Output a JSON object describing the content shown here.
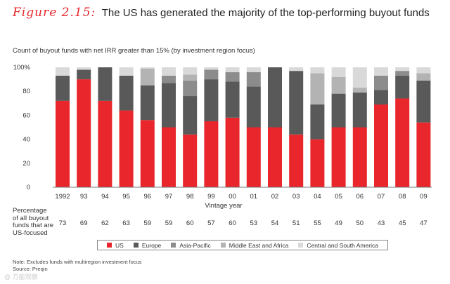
{
  "figure": {
    "label": "Figure 2.15:",
    "title": "The US has generated the majority of the top-performing buyout funds"
  },
  "colors": {
    "US": "#e8262b",
    "Europe": "#595959",
    "Asia-Pacific": "#8c8c8c",
    "Middle East and Africa": "#b3b3b3",
    "Central and South America": "#d9d9d9",
    "accent": "#e8262b"
  },
  "chart_data": {
    "type": "bar",
    "stacked": true,
    "title": "Count of buyout funds with net IRR greater than 15% (by investment region focus)",
    "xlabel": "Vintage year",
    "ylabel": "",
    "ylim": [
      0,
      100
    ],
    "yticks": [
      "0",
      "20",
      "40",
      "60",
      "80",
      "100%"
    ],
    "categories": [
      "1992",
      "93",
      "94",
      "95",
      "96",
      "97",
      "98",
      "99",
      "00",
      "01",
      "02",
      "03",
      "04",
      "05",
      "06",
      "07",
      "08",
      "09"
    ],
    "series": [
      {
        "name": "US",
        "values": [
          72,
          90,
          72,
          64,
          56,
          50,
          44,
          55,
          58,
          50,
          50,
          44,
          40,
          50,
          50,
          69,
          74,
          54
        ]
      },
      {
        "name": "Europe",
        "values": [
          21,
          8,
          28,
          29,
          29,
          37,
          32,
          35,
          30,
          34,
          50,
          53,
          29,
          28,
          29,
          12,
          19,
          35
        ]
      },
      {
        "name": "Asia-Pacific",
        "values": [
          0,
          0,
          0,
          0,
          0,
          6,
          13,
          8,
          8,
          12,
          0,
          0,
          0,
          0,
          0,
          12,
          4,
          0
        ]
      },
      {
        "name": "Middle East and Africa",
        "values": [
          0,
          0,
          0,
          0,
          14,
          0,
          5,
          0,
          0,
          0,
          0,
          0,
          26,
          14,
          4,
          0,
          0,
          6
        ]
      },
      {
        "name": "Central and South America",
        "values": [
          7,
          2,
          0,
          7,
          1,
          7,
          6,
          2,
          4,
          4,
          0,
          3,
          5,
          8,
          17,
          7,
          3,
          5
        ]
      }
    ],
    "percentage_row": {
      "label_lines": [
        "Percentage",
        "of all buyout",
        "funds that are",
        "US-focused"
      ],
      "values": [
        "73",
        "69",
        "62",
        "63",
        "59",
        "59",
        "60",
        "57",
        "60",
        "53",
        "54",
        "51",
        "55",
        "49",
        "50",
        "43",
        "45",
        "47"
      ]
    },
    "legend_position": "bottom"
  },
  "notes": {
    "note": "Note: Excludes funds with multiregion investment focus",
    "source": "Source: Preqin"
  },
  "watermark": "@ 万能观察"
}
